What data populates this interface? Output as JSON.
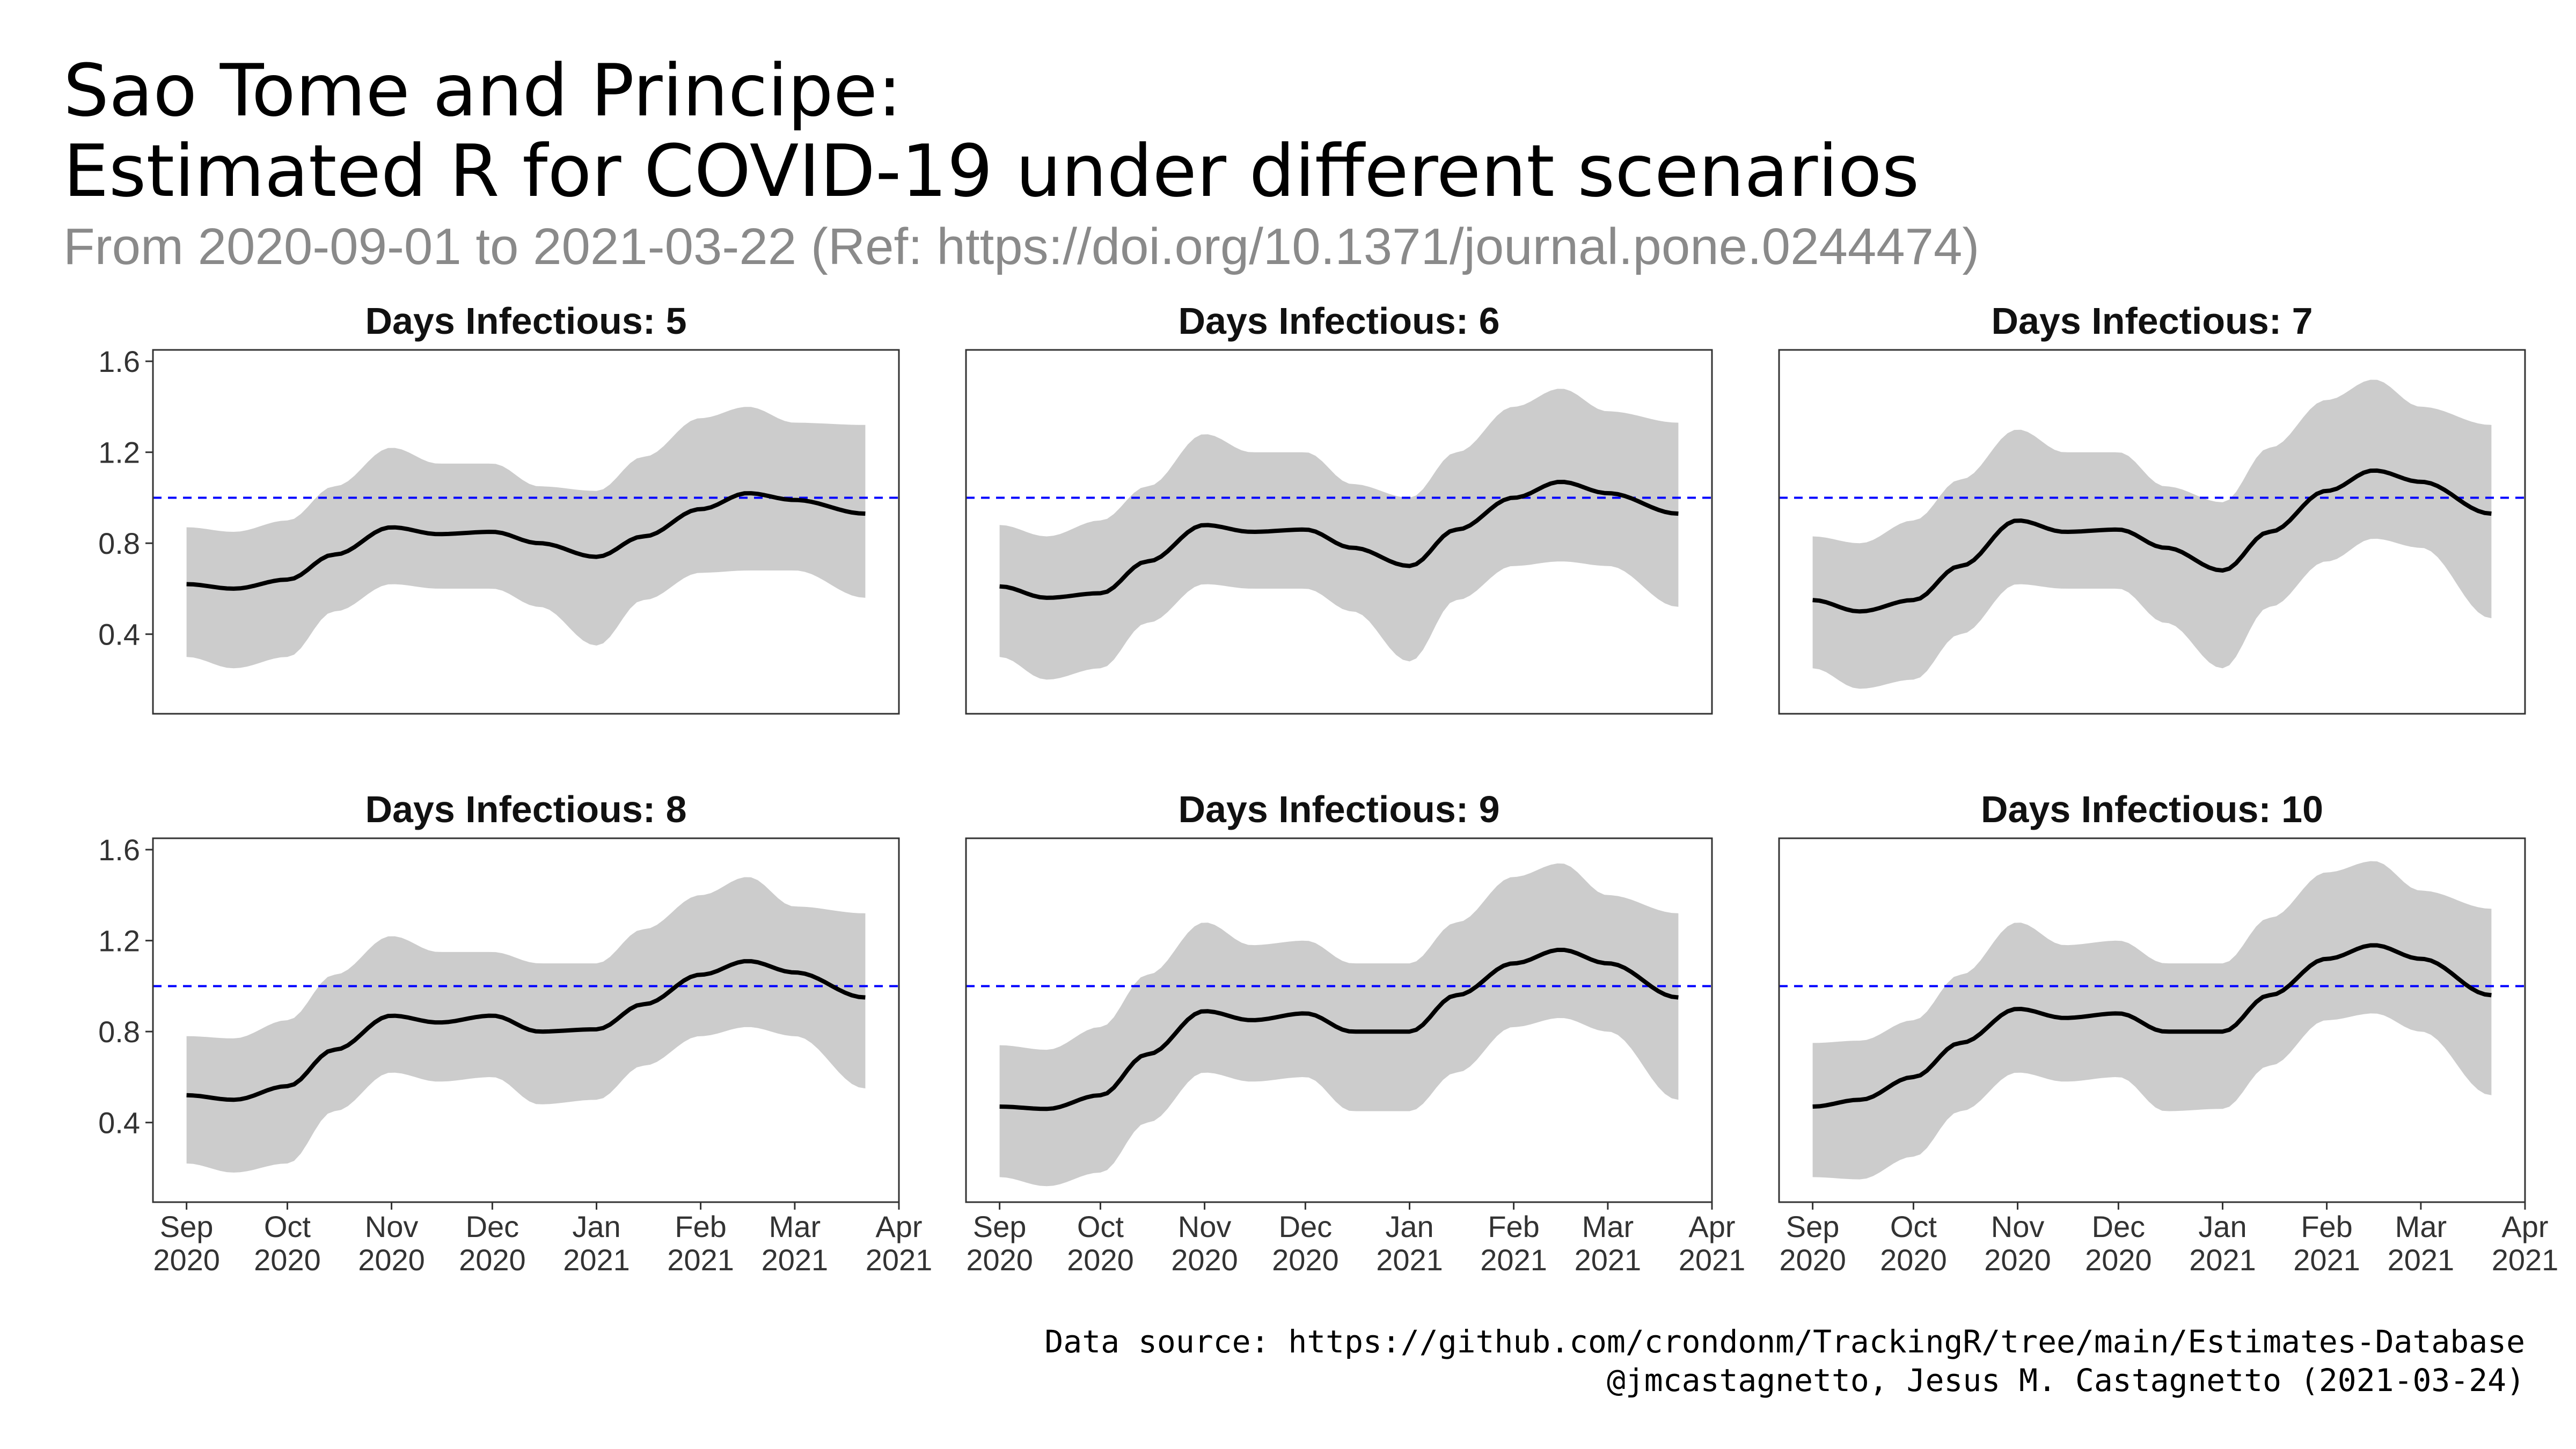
{
  "title_line1": "Sao Tome and Principe:",
  "title_line2": "Estimated R for COVID-19 under different scenarios",
  "subtitle": "From 2020-09-01 to 2021-03-22 (Ref: https://doi.org/10.1371/journal.pone.0244474)",
  "caption_line1": "Data source: https://github.com/crondonm/TrackingR/tree/main/Estimates-Database",
  "caption_line2": "@jmcastagnetto, Jesus M. Castagnetto (2021-03-24)",
  "colors": {
    "estimate_line": "#000000",
    "interval_band": "#cccccc",
    "reference_line": "#0000ff",
    "panel_border": "#333333"
  },
  "chart_data": {
    "type": "line",
    "facet_label_prefix": "Days Infectious:",
    "xlim": [
      "2020-08-22",
      "2021-04-01"
    ],
    "ylim": [
      0.05,
      1.65
    ],
    "x_ticks": [
      {
        "date": "2020-09-01",
        "label": [
          "Sep",
          "2020"
        ]
      },
      {
        "date": "2020-10-01",
        "label": [
          "Oct",
          "2020"
        ]
      },
      {
        "date": "2020-11-01",
        "label": [
          "Nov",
          "2020"
        ]
      },
      {
        "date": "2020-12-01",
        "label": [
          "Dec",
          "2020"
        ]
      },
      {
        "date": "2021-01-01",
        "label": [
          "Jan",
          "2021"
        ]
      },
      {
        "date": "2021-02-01",
        "label": [
          "Feb",
          "2021"
        ]
      },
      {
        "date": "2021-03-01",
        "label": [
          "Mar",
          "2021"
        ]
      },
      {
        "date": "2021-04-01",
        "label": [
          "Apr",
          "2021"
        ]
      }
    ],
    "y_ticks": [
      0.4,
      0.8,
      1.2,
      1.6
    ],
    "reference_line": 1.0,
    "grid": false,
    "dates": [
      "2020-09-01",
      "2020-09-15",
      "2020-10-01",
      "2020-10-15",
      "2020-11-01",
      "2020-11-15",
      "2020-12-01",
      "2020-12-15",
      "2021-01-01",
      "2021-01-15",
      "2021-02-01",
      "2021-02-15",
      "2021-03-01",
      "2021-03-22"
    ],
    "panels": [
      {
        "days_infectious": 5,
        "r": [
          0.62,
          0.6,
          0.64,
          0.75,
          0.87,
          0.84,
          0.85,
          0.8,
          0.74,
          0.83,
          0.95,
          1.02,
          0.99,
          0.93
        ],
        "lo": [
          0.3,
          0.25,
          0.3,
          0.5,
          0.62,
          0.6,
          0.6,
          0.52,
          0.35,
          0.55,
          0.67,
          0.68,
          0.68,
          0.56
        ],
        "hi": [
          0.87,
          0.85,
          0.9,
          1.05,
          1.22,
          1.15,
          1.15,
          1.05,
          1.03,
          1.18,
          1.35,
          1.4,
          1.33,
          1.32
        ]
      },
      {
        "days_infectious": 6,
        "r": [
          0.61,
          0.56,
          0.58,
          0.72,
          0.88,
          0.85,
          0.86,
          0.78,
          0.7,
          0.86,
          1.0,
          1.07,
          1.02,
          0.93
        ],
        "lo": [
          0.3,
          0.2,
          0.25,
          0.45,
          0.62,
          0.6,
          0.6,
          0.5,
          0.28,
          0.55,
          0.7,
          0.72,
          0.7,
          0.52
        ],
        "hi": [
          0.88,
          0.83,
          0.9,
          1.05,
          1.28,
          1.2,
          1.2,
          1.06,
          1.0,
          1.2,
          1.4,
          1.48,
          1.38,
          1.33
        ]
      },
      {
        "days_infectious": 7,
        "r": [
          0.55,
          0.5,
          0.55,
          0.7,
          0.9,
          0.85,
          0.86,
          0.78,
          0.68,
          0.85,
          1.03,
          1.12,
          1.07,
          0.93
        ],
        "lo": [
          0.25,
          0.16,
          0.2,
          0.4,
          0.62,
          0.6,
          0.6,
          0.45,
          0.25,
          0.52,
          0.72,
          0.82,
          0.78,
          0.47
        ],
        "hi": [
          0.83,
          0.8,
          0.9,
          1.08,
          1.3,
          1.2,
          1.2,
          1.05,
          0.98,
          1.22,
          1.43,
          1.52,
          1.4,
          1.32
        ]
      },
      {
        "days_infectious": 8,
        "r": [
          0.52,
          0.5,
          0.56,
          0.72,
          0.87,
          0.84,
          0.87,
          0.8,
          0.81,
          0.92,
          1.05,
          1.11,
          1.06,
          0.95
        ],
        "lo": [
          0.22,
          0.18,
          0.22,
          0.45,
          0.62,
          0.58,
          0.6,
          0.48,
          0.5,
          0.65,
          0.78,
          0.82,
          0.78,
          0.55
        ],
        "hi": [
          0.78,
          0.77,
          0.85,
          1.05,
          1.22,
          1.15,
          1.15,
          1.1,
          1.1,
          1.25,
          1.4,
          1.48,
          1.35,
          1.32
        ]
      },
      {
        "days_infectious": 9,
        "r": [
          0.47,
          0.46,
          0.52,
          0.7,
          0.89,
          0.85,
          0.88,
          0.8,
          0.8,
          0.96,
          1.1,
          1.16,
          1.1,
          0.95
        ],
        "lo": [
          0.16,
          0.12,
          0.18,
          0.4,
          0.62,
          0.58,
          0.6,
          0.45,
          0.45,
          0.62,
          0.82,
          0.86,
          0.8,
          0.5
        ],
        "hi": [
          0.74,
          0.72,
          0.82,
          1.05,
          1.28,
          1.18,
          1.2,
          1.1,
          1.1,
          1.28,
          1.48,
          1.54,
          1.4,
          1.32
        ]
      },
      {
        "days_infectious": 10,
        "r": [
          0.47,
          0.5,
          0.6,
          0.75,
          0.9,
          0.86,
          0.88,
          0.8,
          0.8,
          0.96,
          1.12,
          1.18,
          1.12,
          0.96
        ],
        "lo": [
          0.16,
          0.15,
          0.25,
          0.45,
          0.62,
          0.58,
          0.6,
          0.45,
          0.46,
          0.65,
          0.85,
          0.88,
          0.8,
          0.52
        ],
        "hi": [
          0.75,
          0.76,
          0.85,
          1.05,
          1.28,
          1.18,
          1.2,
          1.1,
          1.1,
          1.3,
          1.5,
          1.55,
          1.42,
          1.34
        ]
      }
    ]
  }
}
